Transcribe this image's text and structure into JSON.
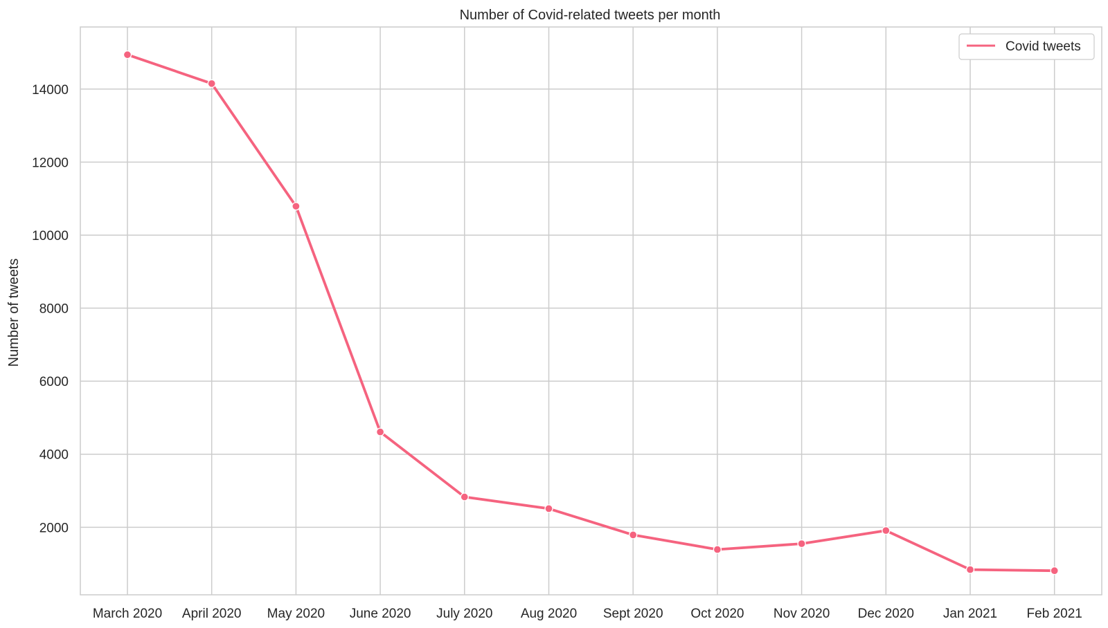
{
  "chart_data": {
    "type": "line",
    "title": "Number of Covid-related tweets per month",
    "xlabel": "",
    "ylabel": "Number of tweets",
    "categories": [
      "March 2020",
      "April 2020",
      "May 2020",
      "June 2020",
      "July 2020",
      "Aug 2020",
      "Sept 2020",
      "Oct 2020",
      "Nov 2020",
      "Dec 2020",
      "Jan 2021",
      "Feb 2021"
    ],
    "series": [
      {
        "name": "Covid tweets",
        "color": "#f5637f",
        "values": [
          14940,
          14150,
          10790,
          4610,
          2830,
          2510,
          1790,
          1390,
          1550,
          1910,
          840,
          810
        ]
      }
    ],
    "yticks": [
      2000,
      4000,
      6000,
      8000,
      10000,
      12000,
      14000
    ],
    "ylim": [
      150,
      15700
    ],
    "grid": true,
    "legend_position": "top-right"
  }
}
